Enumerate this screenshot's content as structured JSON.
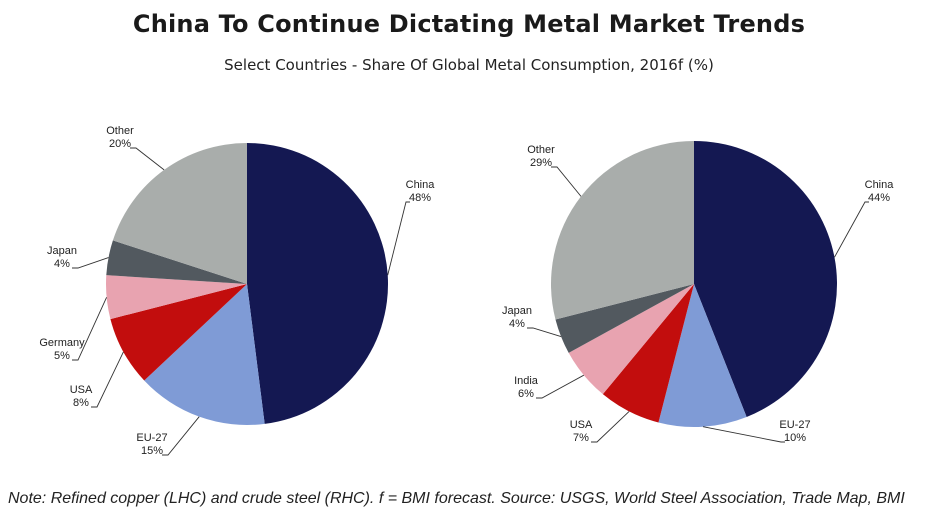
{
  "title": "China To Continue Dictating Metal Market Trends",
  "subtitle": "Select Countries - Share Of Global Metal Consumption, 2016f (%)",
  "note": "Note: Refined copper (LHC) and crude steel (RHC). f = BMI forecast. Source: USGS, World Steel Association, Trade Map, BMI",
  "colors": {
    "China": "#141852",
    "EU-27": "#7f9bd6",
    "USA": "#c20d0d",
    "Germany": "#e8a3b0",
    "India": "#e8a3b0",
    "Japan": "#52595f",
    "Other": "#a9adab"
  },
  "chart_data": [
    {
      "type": "pie",
      "name": "Refined copper",
      "slices": [
        {
          "label": "China",
          "pct_label": "48%",
          "value": 48
        },
        {
          "label": "EU-27",
          "pct_label": "15%",
          "value": 15
        },
        {
          "label": "USA",
          "pct_label": "8%",
          "value": 8
        },
        {
          "label": "Germany",
          "pct_label": "5%",
          "value": 5
        },
        {
          "label": "Japan",
          "pct_label": "4%",
          "value": 4
        },
        {
          "label": "Other",
          "pct_label": "20%",
          "value": 20
        }
      ]
    },
    {
      "type": "pie",
      "name": "Crude steel",
      "slices": [
        {
          "label": "China",
          "pct_label": "44%",
          "value": 44
        },
        {
          "label": "EU-27",
          "pct_label": "10%",
          "value": 10
        },
        {
          "label": "USA",
          "pct_label": "7%",
          "value": 7
        },
        {
          "label": "India",
          "pct_label": "6%",
          "value": 6
        },
        {
          "label": "Japan",
          "pct_label": "4%",
          "value": 4
        },
        {
          "label": "Other",
          "pct_label": "29%",
          "value": 29
        }
      ]
    }
  ]
}
